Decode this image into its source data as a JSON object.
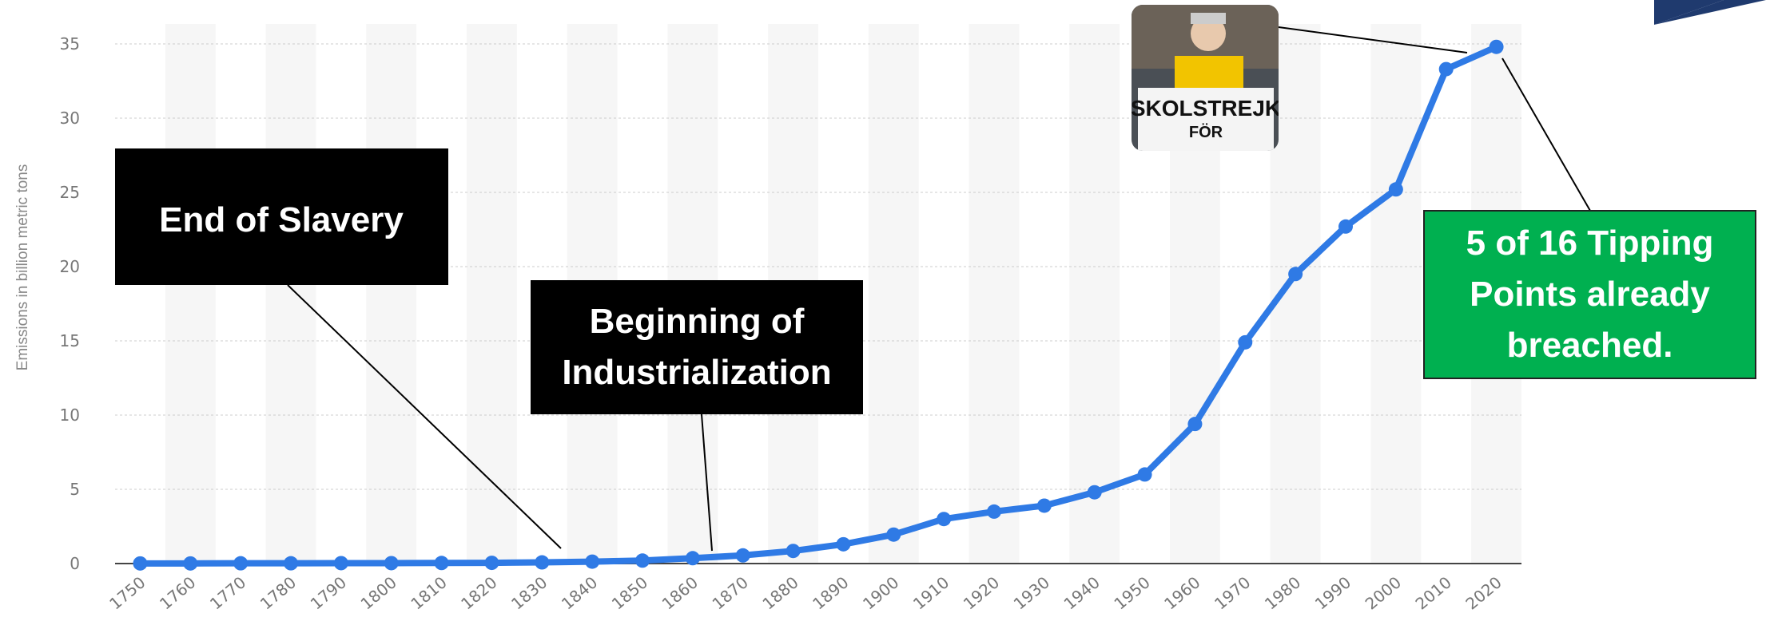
{
  "chart_data": {
    "type": "line",
    "y_label": "Emissions in billion metric tons",
    "x": [
      1750,
      1760,
      1770,
      1780,
      1790,
      1800,
      1810,
      1820,
      1830,
      1840,
      1850,
      1860,
      1870,
      1880,
      1890,
      1900,
      1910,
      1920,
      1930,
      1940,
      1950,
      1960,
      1970,
      1980,
      1990,
      2000,
      2010,
      2020
    ],
    "series": [
      {
        "color": "#2f7ae5",
        "values": [
          0.01,
          0.01,
          0.02,
          0.02,
          0.03,
          0.03,
          0.04,
          0.05,
          0.08,
          0.13,
          0.2,
          0.36,
          0.55,
          0.85,
          1.3,
          1.95,
          3.0,
          3.5,
          3.9,
          4.8,
          6.0,
          9.4,
          14.9,
          19.5,
          22.7,
          25.2,
          33.3,
          34.8
        ]
      }
    ],
    "xlim": [
      1745,
      2025
    ],
    "xticks": [
      1750,
      1760,
      1770,
      1780,
      1790,
      1800,
      1810,
      1820,
      1830,
      1840,
      1850,
      1860,
      1870,
      1880,
      1890,
      1900,
      1910,
      1920,
      1930,
      1940,
      1950,
      1960,
      1970,
      1980,
      1990,
      2000,
      2010,
      2020
    ],
    "ylim": [
      0,
      35
    ],
    "yticks": [
      0,
      5,
      10,
      15,
      20,
      25,
      30,
      35
    ],
    "grid": true,
    "annotations": [
      "End of Slavery",
      "Beginning of Industrialization",
      "5 of 16 Tipping Points already breached."
    ],
    "image_text": [
      "SKOLSTREJK",
      "FÖR"
    ]
  }
}
